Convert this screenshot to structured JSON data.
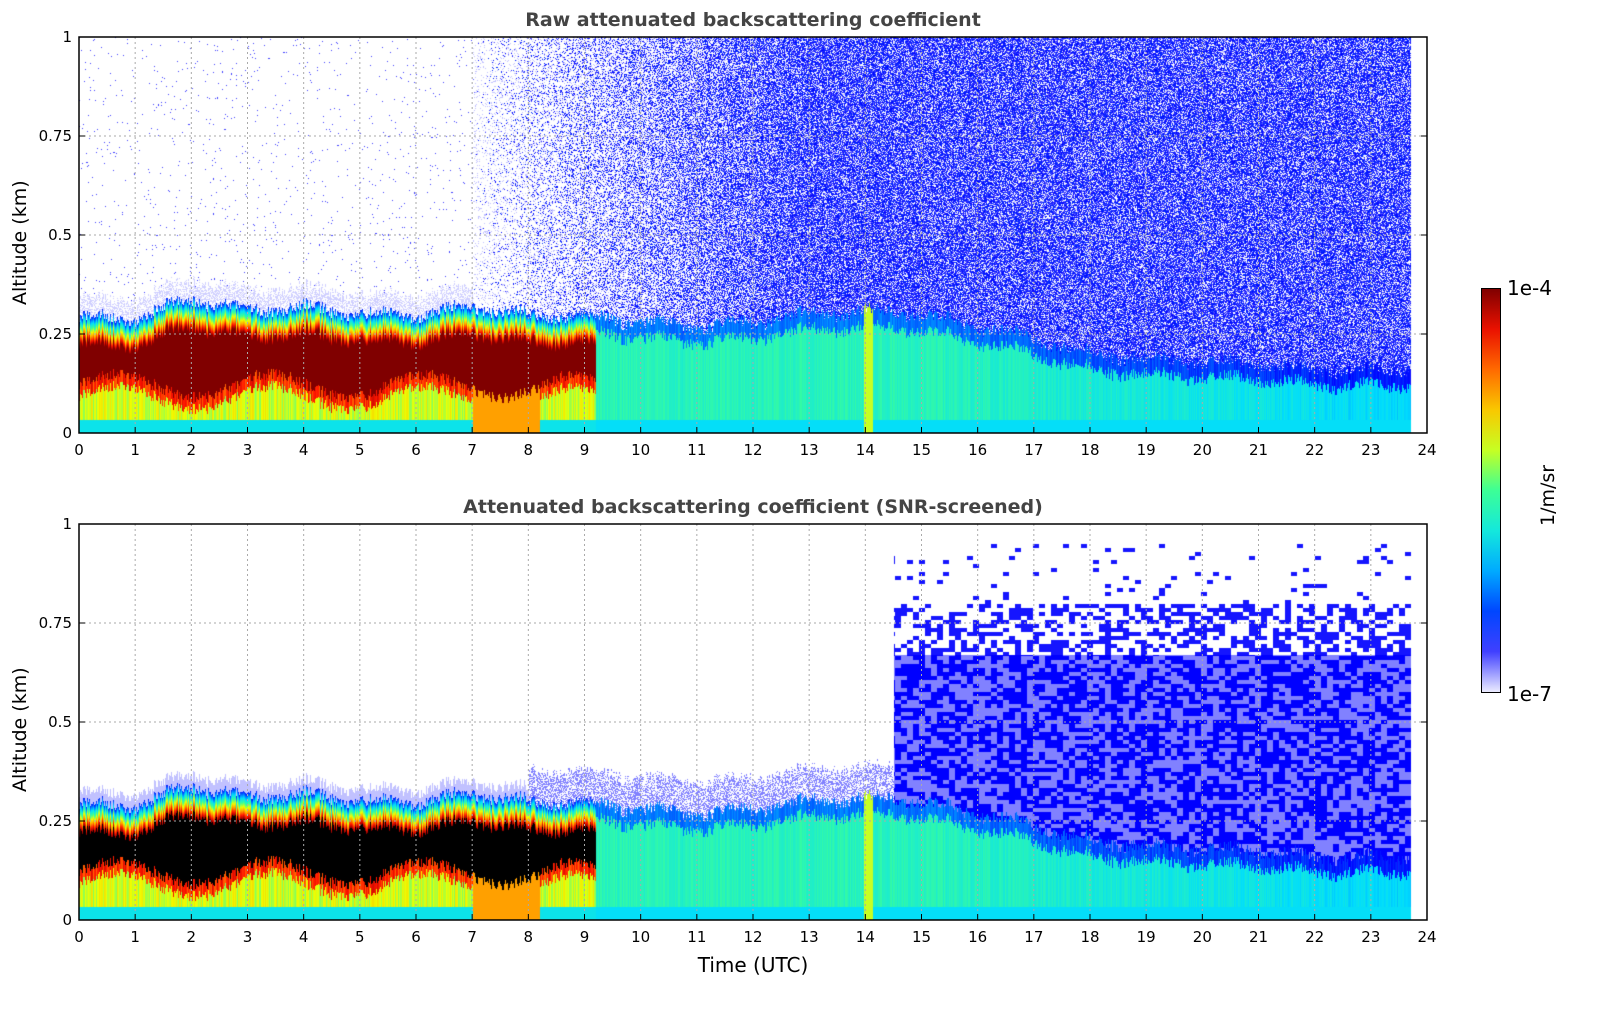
{
  "chart_data": [
    {
      "type": "heatmap",
      "title": "Raw attenuated backscattering coefficient",
      "xlabel": "",
      "ylabel": "Altitude (km)",
      "xlim": [
        0,
        24
      ],
      "ylim": [
        0,
        1
      ],
      "xticks": [
        "0",
        "1",
        "2",
        "3",
        "4",
        "5",
        "6",
        "7",
        "8",
        "9",
        "10",
        "11",
        "12",
        "13",
        "14",
        "15",
        "16",
        "17",
        "18",
        "19",
        "20",
        "21",
        "22",
        "23",
        "24"
      ],
      "yticks": [
        "0",
        "0.25",
        "0.5",
        "0.75",
        "1"
      ],
      "grid": true,
      "screened": false
    },
    {
      "type": "heatmap",
      "title": "Attenuated backscattering coefficient (SNR-screened)",
      "xlabel": "Time (UTC)",
      "ylabel": "Altitude (km)",
      "xlim": [
        0,
        24
      ],
      "ylim": [
        0,
        1
      ],
      "xticks": [
        "0",
        "1",
        "2",
        "3",
        "4",
        "5",
        "6",
        "7",
        "8",
        "9",
        "10",
        "11",
        "12",
        "13",
        "14",
        "15",
        "16",
        "17",
        "18",
        "19",
        "20",
        "21",
        "22",
        "23",
        "24"
      ],
      "yticks": [
        "0",
        "0.25",
        "0.5",
        "0.75",
        "1"
      ],
      "grid": true,
      "screened": true
    }
  ],
  "aerosol_layer": {
    "time_utc": [
      0,
      1,
      2,
      3,
      4,
      5,
      6,
      7,
      8,
      9,
      10,
      11,
      12,
      13,
      14,
      15,
      16,
      17,
      18,
      19,
      20,
      21,
      22,
      23,
      23.7
    ],
    "layer_top_km": [
      0.29,
      0.29,
      0.34,
      0.31,
      0.32,
      0.3,
      0.3,
      0.32,
      0.3,
      0.3,
      0.28,
      0.27,
      0.28,
      0.3,
      0.31,
      0.3,
      0.27,
      0.24,
      0.2,
      0.19,
      0.18,
      0.18,
      0.16,
      0.16,
      0.16
    ],
    "saturated_core_end_utc": 9.2,
    "data_end_utc": 23.7
  },
  "colorbar": {
    "label": "1/m/sr",
    "min_label": "1e-7",
    "max_label": "1e-4",
    "log_min": -7,
    "log_max": -4
  }
}
